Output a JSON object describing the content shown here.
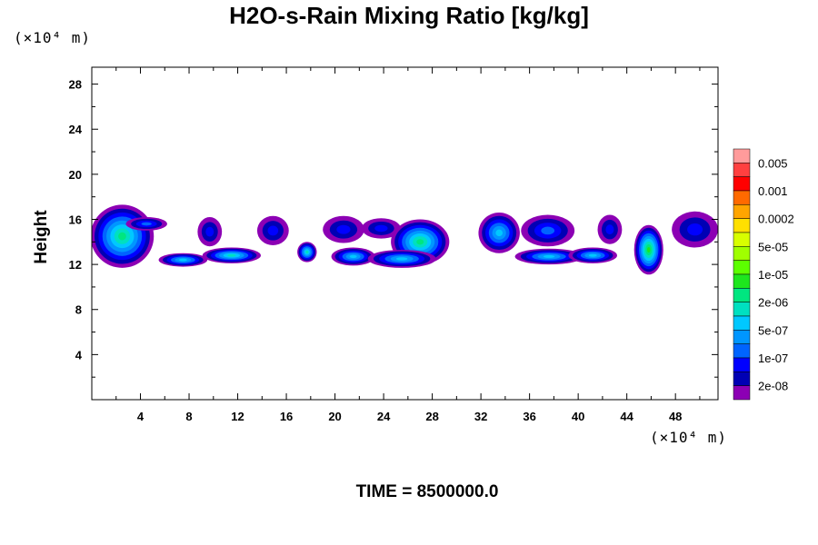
{
  "chart_data": {
    "type": "heatmap",
    "title": "H2O-s-Rain Mixing Ratio [kg/kg]",
    "ylabel": "Height",
    "xlabel": "",
    "x_unit": "(×10⁴ m)",
    "y_unit": "(×10⁴ m)",
    "footer": "TIME = 8500000.0",
    "xlim": [
      0,
      51.5
    ],
    "ylim": [
      0,
      29.5
    ],
    "x_ticks": [
      4,
      8,
      12,
      16,
      20,
      24,
      28,
      32,
      36,
      40,
      44,
      48
    ],
    "y_ticks": [
      4,
      8,
      12,
      16,
      20,
      24,
      28
    ],
    "colorbar": {
      "labels": [
        "0.005",
        "0.001",
        "0.0002",
        "5e-05",
        "1e-05",
        "2e-06",
        "5e-07",
        "1e-07",
        "2e-08"
      ],
      "colors_top_to_bottom": [
        "#ff9b9b",
        "#ff4040",
        "#ff0000",
        "#ff6a00",
        "#ffa500",
        "#ffe000",
        "#d8ff00",
        "#a0ff00",
        "#5cff00",
        "#1ee61e",
        "#00e680",
        "#00e0c0",
        "#00c8ff",
        "#0096ff",
        "#0064ff",
        "#0000ff",
        "#0000b4",
        "#8c00b4"
      ]
    },
    "cells": [
      {
        "x": 2.5,
        "y": 14.5,
        "rx": 2.6,
        "ry": 2.8,
        "max_level": 7
      },
      {
        "x": 4.5,
        "y": 15.6,
        "rx": 1.7,
        "ry": 0.6,
        "max_level": 3
      },
      {
        "x": 7.5,
        "y": 12.4,
        "rx": 2.0,
        "ry": 0.6,
        "max_level": 5
      },
      {
        "x": 9.7,
        "y": 14.9,
        "rx": 1.0,
        "ry": 1.3,
        "max_level": 2
      },
      {
        "x": 11.5,
        "y": 12.8,
        "rx": 2.4,
        "ry": 0.7,
        "max_level": 6
      },
      {
        "x": 14.9,
        "y": 15.0,
        "rx": 1.3,
        "ry": 1.3,
        "max_level": 2
      },
      {
        "x": 17.7,
        "y": 13.1,
        "rx": 0.8,
        "ry": 0.9,
        "max_level": 6
      },
      {
        "x": 20.7,
        "y": 15.1,
        "rx": 1.7,
        "ry": 1.2,
        "max_level": 2
      },
      {
        "x": 21.5,
        "y": 12.7,
        "rx": 1.8,
        "ry": 0.8,
        "max_level": 5
      },
      {
        "x": 23.8,
        "y": 15.2,
        "rx": 1.6,
        "ry": 0.9,
        "max_level": 2
      },
      {
        "x": 27.0,
        "y": 14.0,
        "rx": 2.4,
        "ry": 2.0,
        "max_level": 7
      },
      {
        "x": 25.5,
        "y": 12.5,
        "rx": 2.8,
        "ry": 0.8,
        "max_level": 5
      },
      {
        "x": 33.5,
        "y": 14.8,
        "rx": 1.7,
        "ry": 1.8,
        "max_level": 5
      },
      {
        "x": 37.5,
        "y": 15.0,
        "rx": 2.2,
        "ry": 1.4,
        "max_level": 3
      },
      {
        "x": 37.6,
        "y": 12.7,
        "rx": 2.8,
        "ry": 0.7,
        "max_level": 5
      },
      {
        "x": 41.2,
        "y": 12.8,
        "rx": 2.0,
        "ry": 0.7,
        "max_level": 5
      },
      {
        "x": 42.6,
        "y": 15.1,
        "rx": 1.0,
        "ry": 1.3,
        "max_level": 2
      },
      {
        "x": 45.8,
        "y": 13.3,
        "rx": 1.2,
        "ry": 2.2,
        "max_level": 8
      },
      {
        "x": 49.6,
        "y": 15.1,
        "rx": 1.9,
        "ry": 1.6,
        "max_level": 2
      }
    ]
  }
}
